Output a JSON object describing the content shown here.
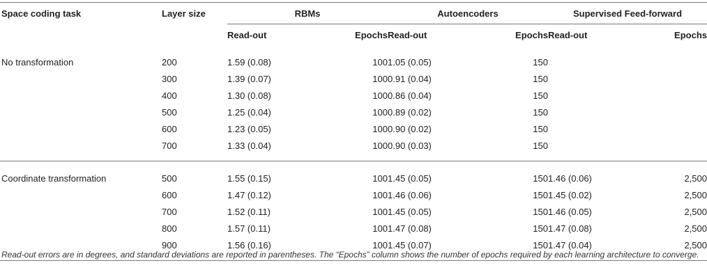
{
  "table": {
    "headers": {
      "task": "Space coding task",
      "layer_size": "Layer size",
      "groups": [
        "RBMs",
        "Autoencoders",
        "Supervised Feed-forward"
      ],
      "sub": [
        "Read-out",
        "Epochs"
      ]
    },
    "sections": [
      {
        "task": "No transformation",
        "rows": [
          {
            "size": "200",
            "rbm_read": "1.59 (0.08)",
            "rbm_epochs": "100",
            "ae_read": "1.05 (0.05)",
            "ae_epochs": "150",
            "sff_read": "",
            "sff_epochs": ""
          },
          {
            "size": "300",
            "rbm_read": "1.39 (0.07)",
            "rbm_epochs": "100",
            "ae_read": "0.91 (0.04)",
            "ae_epochs": "150",
            "sff_read": "",
            "sff_epochs": ""
          },
          {
            "size": "400",
            "rbm_read": "1.30 (0.08)",
            "rbm_epochs": "100",
            "ae_read": "0.86 (0.04)",
            "ae_epochs": "150",
            "sff_read": "",
            "sff_epochs": ""
          },
          {
            "size": "500",
            "rbm_read": "1.25 (0.04)",
            "rbm_epochs": "100",
            "ae_read": "0.89 (0.02)",
            "ae_epochs": "150",
            "sff_read": "",
            "sff_epochs": ""
          },
          {
            "size": "600",
            "rbm_read": "1.23 (0.05)",
            "rbm_epochs": "100",
            "ae_read": "0.90 (0.02)",
            "ae_epochs": "150",
            "sff_read": "",
            "sff_epochs": ""
          },
          {
            "size": "700",
            "rbm_read": "1.33 (0.04)",
            "rbm_epochs": "100",
            "ae_read": "0.90 (0.03)",
            "ae_epochs": "150",
            "sff_read": "",
            "sff_epochs": ""
          }
        ]
      },
      {
        "task": "Coordinate transformation",
        "rows": [
          {
            "size": "500",
            "rbm_read": "1.55 (0.15)",
            "rbm_epochs": "100",
            "ae_read": "1.45 (0.05)",
            "ae_epochs": "150",
            "sff_read": "1.46 (0.06)",
            "sff_epochs": "2,500"
          },
          {
            "size": "600",
            "rbm_read": "1.47 (0.12)",
            "rbm_epochs": "100",
            "ae_read": "1.46 (0.06)",
            "ae_epochs": "150",
            "sff_read": "1.45 (0.02)",
            "sff_epochs": "2,500"
          },
          {
            "size": "700",
            "rbm_read": "1.52 (0.11)",
            "rbm_epochs": "100",
            "ae_read": "1.45 (0.05)",
            "ae_epochs": "150",
            "sff_read": "1.46 (0.05)",
            "sff_epochs": "2,500"
          },
          {
            "size": "800",
            "rbm_read": "1.57 (0.11)",
            "rbm_epochs": "100",
            "ae_read": "1.47 (0.08)",
            "ae_epochs": "150",
            "sff_read": "1.47 (0.08)",
            "sff_epochs": "2,500"
          },
          {
            "size": "900",
            "rbm_read": "1.56 (0.16)",
            "rbm_epochs": "100",
            "ae_read": "1.45 (0.07)",
            "ae_epochs": "150",
            "sff_read": "1.47 (0.04)",
            "sff_epochs": "2,500"
          }
        ]
      }
    ]
  },
  "footnote": "Read-out errors are in degrees, and standard deviations are reported in parentheses. The “Epochs” column shows the number of epochs required by each learning architecture to converge."
}
